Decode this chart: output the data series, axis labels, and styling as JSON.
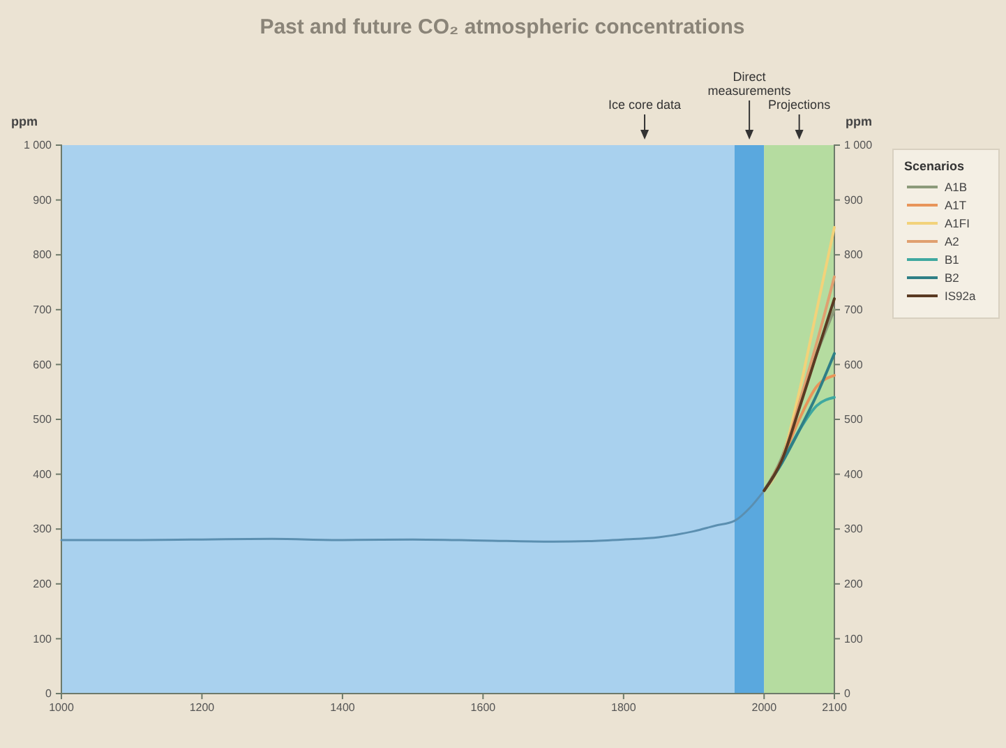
{
  "chart_data": {
    "type": "line",
    "title": "Past and future CO₂ atmospheric concentrations",
    "ylabel": "ppm",
    "y2label": "ppm",
    "legend_title": "Scenarios",
    "legend": "right",
    "xlim": [
      1000,
      2100
    ],
    "xticks": [
      1000,
      1200,
      1400,
      1600,
      1800,
      2000,
      2100
    ],
    "ylim": [
      0,
      1000
    ],
    "yticks": [
      0,
      100,
      200,
      300,
      400,
      500,
      600,
      700,
      800,
      900,
      {
        "value": 1000,
        "label": "1 000"
      }
    ],
    "y2lim": [
      0,
      1000
    ],
    "y2ticks": [
      0,
      100,
      200,
      300,
      400,
      500,
      600,
      700,
      800,
      900,
      {
        "value": 1000,
        "label": "1 000"
      }
    ],
    "bands": [
      {
        "axis": "x",
        "from": 1000,
        "to": 1958,
        "label": "Ice core data",
        "color": "#a9d1ee"
      },
      {
        "axis": "x",
        "from": 1958,
        "to": 2000,
        "label": "Direct measurements",
        "color": "#5aa8de"
      },
      {
        "axis": "x",
        "from": 2000,
        "to": 2100,
        "label": "Projections",
        "color": "#b5dca0"
      }
    ],
    "series": [
      {
        "color": "#5b8fb0",
        "x": [
          1000,
          1100,
          1200,
          1300,
          1400,
          1500,
          1600,
          1700,
          1750,
          1800,
          1850,
          1900,
          1930,
          1958,
          1980,
          2000
        ],
        "values": [
          280,
          280,
          281,
          282,
          280,
          281,
          279,
          277,
          278,
          281,
          285,
          296,
          306,
          315,
          339,
          370
        ]
      },
      {
        "name": "A1B",
        "color": "#8c9a7a",
        "x": [
          2000,
          2025,
          2050,
          2075,
          2100
        ],
        "values": [
          370,
          430,
          530,
          620,
          700
        ]
      },
      {
        "name": "A1T",
        "color": "#e8955a",
        "x": [
          2000,
          2025,
          2050,
          2075,
          2100
        ],
        "values": [
          370,
          425,
          500,
          560,
          580
        ]
      },
      {
        "name": "A1FI",
        "color": "#f2d27a",
        "x": [
          2000,
          2025,
          2050,
          2075,
          2100
        ],
        "values": [
          370,
          425,
          550,
          700,
          850
        ]
      },
      {
        "name": "A2",
        "color": "#e0a070",
        "x": [
          2000,
          2025,
          2050,
          2075,
          2100
        ],
        "values": [
          370,
          425,
          530,
          640,
          760
        ]
      },
      {
        "name": "B1",
        "color": "#3fa8a0",
        "x": [
          2000,
          2025,
          2050,
          2075,
          2100
        ],
        "values": [
          370,
          420,
          480,
          525,
          540
        ]
      },
      {
        "name": "B2",
        "color": "#2f7f86",
        "x": [
          2000,
          2025,
          2050,
          2075,
          2100
        ],
        "values": [
          370,
          420,
          480,
          545,
          620
        ]
      },
      {
        "name": "IS92a",
        "color": "#5a3a22",
        "x": [
          2000,
          2025,
          2050,
          2075,
          2100
        ],
        "values": [
          370,
          425,
          520,
          620,
          720
        ]
      }
    ]
  }
}
